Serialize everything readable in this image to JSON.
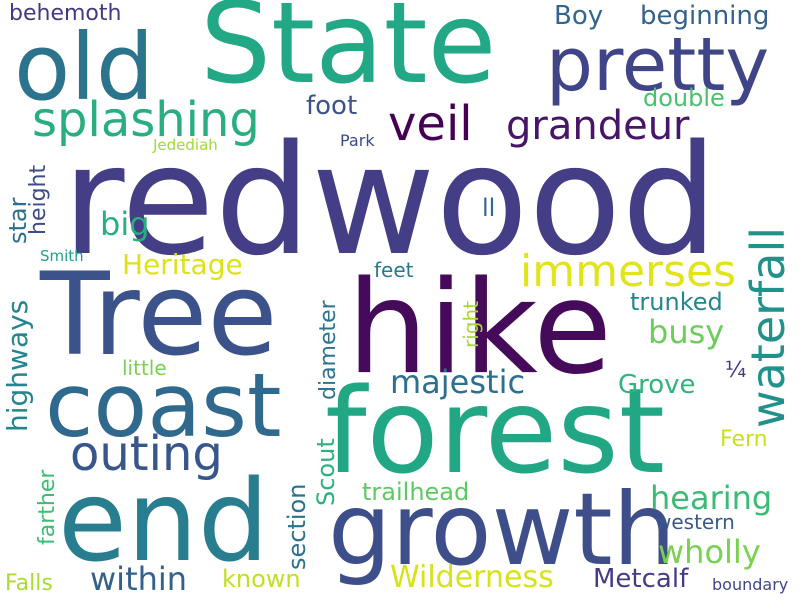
{
  "word_cloud": {
    "words": [
      {
        "text": "redwood",
        "color": "#433e85"
      },
      {
        "text": "hike",
        "color": "#450a59"
      },
      {
        "text": "Tree",
        "color": "#3b528b"
      },
      {
        "text": "State",
        "color": "#22a885"
      },
      {
        "text": "forest",
        "color": "#22a785"
      },
      {
        "text": "growth",
        "color": "#3d4e8a"
      },
      {
        "text": "end",
        "color": "#287d8e"
      },
      {
        "text": "coast",
        "color": "#30698e"
      },
      {
        "text": "old",
        "color": "#2c738e"
      },
      {
        "text": "pretty",
        "color": "#404588"
      },
      {
        "text": "splashing",
        "color": "#29af7f"
      },
      {
        "text": "veil",
        "color": "#440154"
      },
      {
        "text": "grandeur",
        "color": "#481668"
      },
      {
        "text": "waterfall",
        "color": "#21918c"
      },
      {
        "text": "immerses",
        "color": "#e3e418"
      },
      {
        "text": "outing",
        "color": "#39568c"
      },
      {
        "text": "majestic",
        "color": "#2d708e"
      },
      {
        "text": "within",
        "color": "#34608d"
      },
      {
        "text": "hearing",
        "color": "#3bbb75"
      },
      {
        "text": "wholly",
        "color": "#7ad151"
      },
      {
        "text": "Wilderness",
        "color": "#d8e219"
      },
      {
        "text": "Metcalf",
        "color": "#433d84"
      },
      {
        "text": "Heritage",
        "color": "#dde318"
      },
      {
        "text": "big",
        "color": "#29af7f"
      },
      {
        "text": "busy",
        "color": "#6ccd5a"
      },
      {
        "text": "trunked",
        "color": "#24868e"
      },
      {
        "text": "Grove",
        "color": "#2fb47c"
      },
      {
        "text": "Boy",
        "color": "#31678e"
      },
      {
        "text": "beginning",
        "color": "#33628d"
      },
      {
        "text": "double",
        "color": "#4ac16d"
      },
      {
        "text": "foot",
        "color": "#3b528b"
      },
      {
        "text": "behemoth",
        "color": "#443983"
      },
      {
        "text": "trailhead",
        "color": "#5ec962"
      },
      {
        "text": "known",
        "color": "#c2df23"
      },
      {
        "text": "western",
        "color": "#38598c"
      },
      {
        "text": "Fern",
        "color": "#c8e020"
      },
      {
        "text": "feet",
        "color": "#2a788e"
      },
      {
        "text": "little",
        "color": "#7ad151"
      },
      {
        "text": "ll",
        "color": "#31688e"
      },
      {
        "text": "¼",
        "color": "#453781"
      },
      {
        "text": "Park",
        "color": "#3e4a89"
      },
      {
        "text": "Jedediah",
        "color": "#a0da39"
      },
      {
        "text": "Smith",
        "color": "#1fa088"
      },
      {
        "text": "Falls",
        "color": "#a8db34"
      },
      {
        "text": "boundary",
        "color": "#3f4788"
      },
      {
        "text": "star",
        "color": "#2e6f8e"
      },
      {
        "text": "height",
        "color": "#3e4c8a"
      },
      {
        "text": "highways",
        "color": "#25858e"
      },
      {
        "text": "farther",
        "color": "#3dbc74"
      },
      {
        "text": "section",
        "color": "#2c728e"
      },
      {
        "text": "Scout",
        "color": "#2db27d"
      },
      {
        "text": "diameter",
        "color": "#2b748e"
      },
      {
        "text": "right",
        "color": "#a5db36"
      }
    ]
  }
}
